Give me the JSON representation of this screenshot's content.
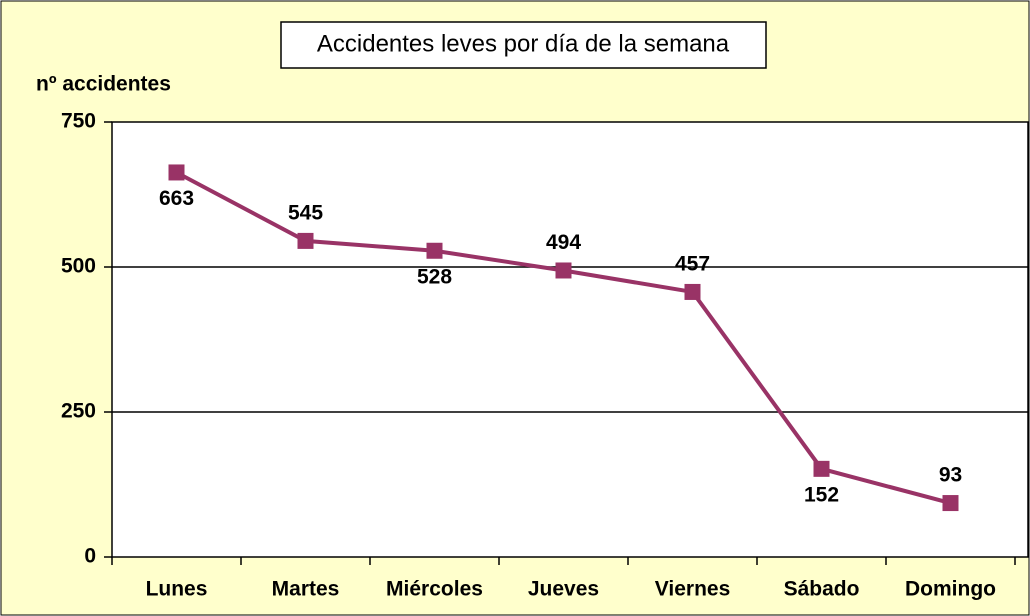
{
  "chart_data": {
    "type": "line",
    "title": "Accidentes leves por día de la semana",
    "y_label": "nº accidentes",
    "categories": [
      "Lunes",
      "Martes",
      "Miércoles",
      "Jueves",
      "Viernes",
      "Sábado",
      "Domingo"
    ],
    "series": [
      {
        "name": "Accidentes leves",
        "color": "#993366",
        "values": [
          663,
          545,
          528,
          494,
          457,
          152,
          93
        ]
      }
    ],
    "ylim": [
      0,
      750
    ],
    "yticks": [
      0,
      250,
      500,
      750
    ],
    "grid": true
  }
}
